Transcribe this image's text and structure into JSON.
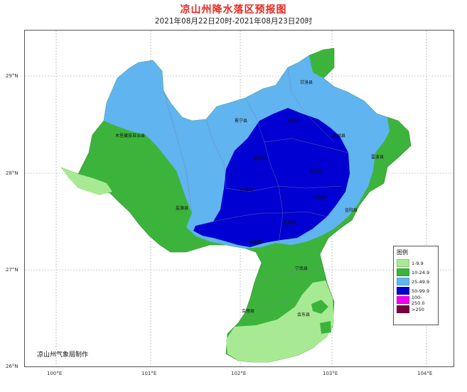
{
  "title": "凉山州降水落区预报图",
  "subtitle": "2021年08月22日20时-2021年08月23日20时",
  "credit": "凉山州气象局制作",
  "axes": {
    "lat_labels": [
      "29°N",
      "28°N",
      "27°N",
      "26°N"
    ],
    "lon_labels": [
      "100°E",
      "101°E",
      "102°E",
      "103°E",
      "104°E"
    ]
  },
  "counties": [
    "甘洛县",
    "冕宁县",
    "木里藏族自治县",
    "越西县",
    "美姑县",
    "雷波县",
    "喜德县",
    "昭觉县",
    "西昌市",
    "布拖县",
    "金阳县",
    "盐源县",
    "普格县",
    "德昌县",
    "宁南县",
    "会理县",
    "会东县"
  ],
  "legend": {
    "title": "图例",
    "items": [
      {
        "label": "1-9.9",
        "color": "#a8ea94"
      },
      {
        "label": "10-24.9",
        "color": "#3cb43c"
      },
      {
        "label": "25-49.9",
        "color": "#60b4f0"
      },
      {
        "label": "50-99.9",
        "color": "#0000d2"
      },
      {
        "label": "100-250.0",
        "color": "#f000f0"
      },
      {
        "label": ">250",
        "color": "#780041"
      }
    ]
  },
  "colors": {
    "rain_1_9": "#a8ea94",
    "rain_10_24": "#3cb43c",
    "rain_25_49": "#60b4f0",
    "rain_50_99": "#0000d2",
    "title_red": "#e8281e"
  }
}
